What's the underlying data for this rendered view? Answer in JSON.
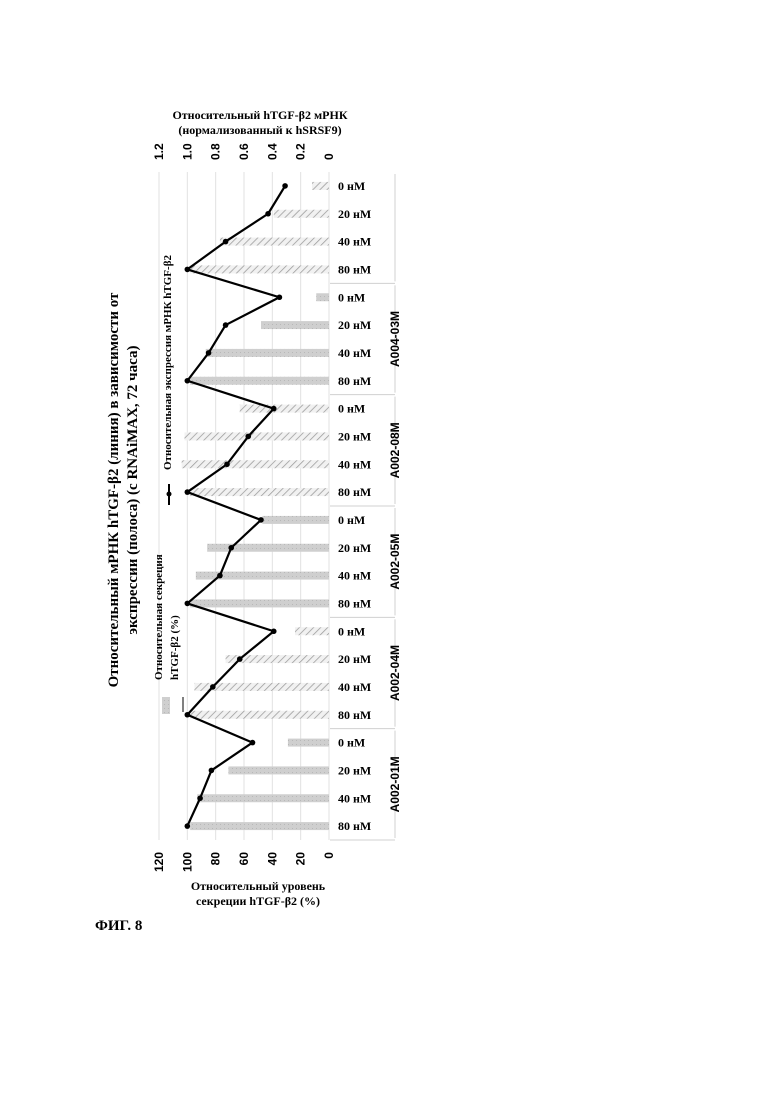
{
  "figure_label": "ФИГ. 8",
  "chart_data": {
    "type": "bar+line",
    "orientation": "rotated (categories run top-to-bottom, values right-to-left)",
    "title_line1": "Относительный мРНК hTGF-β2 (линия) в зависимости от",
    "title_line2": "экспрессии (полоса) (с RNAiMAX, 72 часа)",
    "bar_axis": {
      "title_line1": "Относительный уровень",
      "title_line2": "секреции hTGF-β2 (%)",
      "ticks": [
        "0",
        "20",
        "40",
        "60",
        "80",
        "100",
        "120"
      ],
      "range": [
        0,
        120
      ]
    },
    "line_axis": {
      "title_line1": "Относительный hTGF-β2 мРНК",
      "title_line2": "(нормализованный к hSRSF9)",
      "ticks": [
        "0",
        "0.2",
        "0.4",
        "0.6",
        "0.8",
        "1.0",
        "1.2"
      ],
      "range": [
        0,
        1.2
      ]
    },
    "legend": {
      "bar_label_line1": "Относительная секреция",
      "bar_label_line2": "hTGF-β2 (%)",
      "line_label": "Относительная экспрессия мРНК hTGF-β2"
    },
    "groups": [
      {
        "name": "A002-01M",
        "concentrations": [
          "80 нМ",
          "40 нМ",
          "20 нМ",
          "0 нМ"
        ],
        "bar_values": [
          98,
          93,
          71,
          29
        ],
        "line_values": [
          1.0,
          0.91,
          0.83,
          0.54
        ],
        "bar_pattern": "solid"
      },
      {
        "name": "A002-04M",
        "concentrations": [
          "80 нМ",
          "40 нМ",
          "20 нМ",
          "0 нМ"
        ],
        "bar_values": [
          98,
          95,
          73,
          24
        ],
        "line_values": [
          1.0,
          0.82,
          0.63,
          0.39
        ],
        "bar_pattern": "hatched"
      },
      {
        "name": "A002-05M",
        "concentrations": [
          "80 нМ",
          "40 нМ",
          "20 нМ",
          "0 нМ"
        ],
        "bar_values": [
          98,
          94,
          86,
          47
        ],
        "line_values": [
          1.0,
          0.77,
          0.69,
          0.48
        ],
        "bar_pattern": "solid"
      },
      {
        "name": "A002-08M",
        "concentrations": [
          "80 нМ",
          "40 нМ",
          "20 нМ",
          "0 нМ"
        ],
        "bar_values": [
          98,
          104,
          102,
          63
        ],
        "line_values": [
          1.0,
          0.72,
          0.57,
          0.39
        ],
        "bar_pattern": "hatched"
      },
      {
        "name": "A004-03M",
        "concentrations": [
          "80 нМ",
          "40 нМ",
          "20 нМ",
          "0 нМ"
        ],
        "bar_values": [
          98,
          87,
          48,
          9
        ],
        "line_values": [
          1.0,
          0.85,
          0.73,
          0.35
        ],
        "bar_pattern": "solid"
      },
      {
        "name": "",
        "concentrations": [
          "80 нМ",
          "40 нМ",
          "20 нМ",
          "0 нМ"
        ],
        "bar_values": [
          98,
          77,
          39,
          12
        ],
        "line_values": [
          1.0,
          0.73,
          0.43,
          0.31
        ],
        "bar_pattern": "hatched"
      }
    ]
  }
}
